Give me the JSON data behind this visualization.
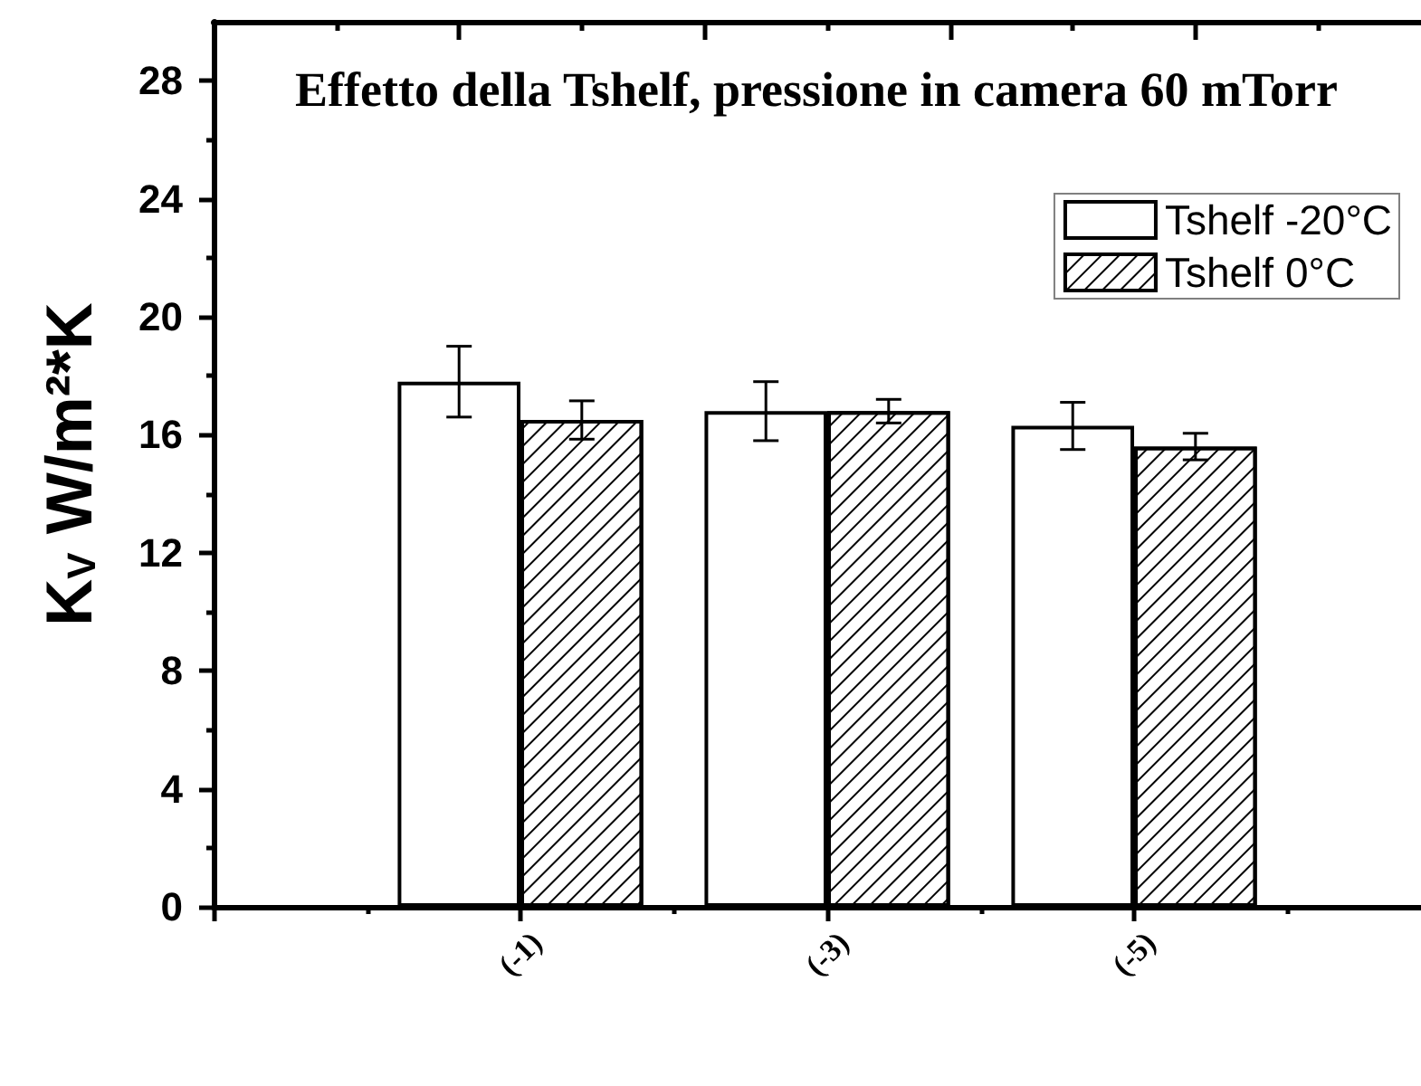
{
  "chart_data": {
    "type": "bar",
    "title": "Effetto della Tshelf, pressione in camera 60 mTorr",
    "ylabel": "K$_{V}$ W/m²*K",
    "categories": [
      "(-1)",
      "(-3)",
      "(-5)"
    ],
    "series": [
      {
        "name": "Tshelf -20°C",
        "color": "#ffffff",
        "values": [
          17.8,
          16.8,
          16.3
        ],
        "errors": [
          1.2,
          1.0,
          0.8
        ]
      },
      {
        "name": "Tshelf 0°C",
        "color": "#ffffff",
        "values": [
          16.5,
          16.8,
          15.6
        ],
        "errors": [
          0.65,
          0.4,
          0.45
        ]
      }
    ],
    "ylim": [
      0,
      30
    ],
    "yticks": [
      0,
      4,
      8,
      12,
      16,
      20,
      24,
      28
    ],
    "legend": "top right",
    "grid": false
  }
}
